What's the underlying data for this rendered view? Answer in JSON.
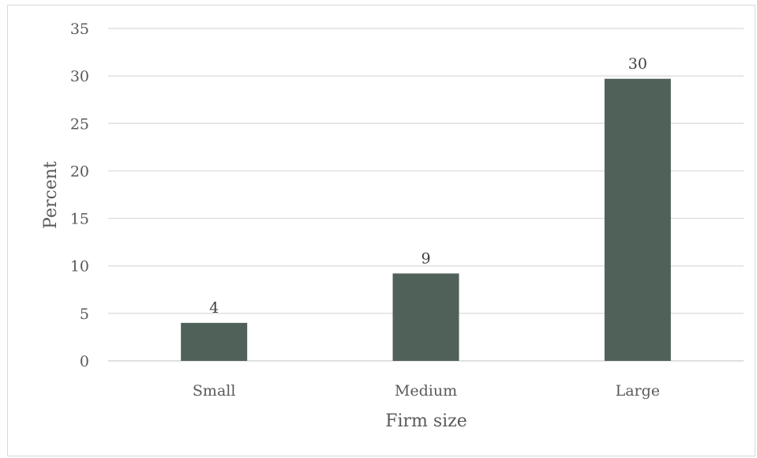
{
  "chart_data": {
    "type": "bar",
    "categories": [
      "Small",
      "Medium",
      "Large"
    ],
    "values": [
      4,
      9.2,
      29.7
    ],
    "data_labels": [
      "4",
      "9",
      "30"
    ],
    "xlabel": "Firm size",
    "ylabel": "Percent",
    "ylim": [
      0,
      35
    ],
    "yticks": [
      0,
      5,
      10,
      15,
      20,
      25,
      30,
      35
    ],
    "ytick_labels": [
      "0",
      "5",
      "10",
      "15",
      "20",
      "25",
      "30",
      "35"
    ],
    "grid": true,
    "legend": "none",
    "bar_color": "#4f6159",
    "grid_color": "#d9d9d9"
  }
}
